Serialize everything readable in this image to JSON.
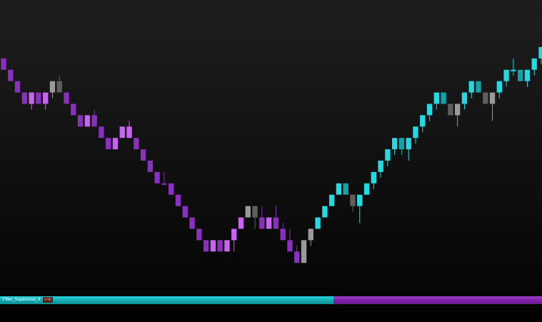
{
  "colors": {
    "bear_strong": "#8a2fc0",
    "bear_weak": "#c865f0",
    "neutral_light": "#9a9a9a",
    "neutral_dark": "#5e5e5e",
    "bull_strong": "#23d9e2",
    "bull_weak": "#11a3ab",
    "indicator_bull": "#15b3ba",
    "indicator_bear": "#8d2bbf"
  },
  "indicator": {
    "label": "Filter_Supernova_6",
    "value": "0.00",
    "bull_fraction": 0.615
  },
  "chart_data": {
    "type": "candlestick",
    "x": [
      1,
      2,
      3,
      4,
      5,
      6,
      7,
      8,
      9,
      10,
      11,
      12,
      13,
      14,
      15,
      16,
      17,
      18,
      19,
      20,
      21,
      22,
      23,
      24,
      25,
      26,
      27,
      28,
      29,
      30,
      31,
      32,
      33,
      34,
      35,
      36,
      37,
      38,
      39,
      40,
      41,
      42,
      43,
      44,
      45,
      46,
      47,
      48,
      49,
      50,
      51,
      52,
      53,
      54,
      55,
      56,
      57,
      58,
      59,
      60,
      61,
      62,
      63,
      64,
      65,
      66,
      67,
      68,
      69,
      70,
      71,
      72,
      73,
      74,
      75,
      76,
      77,
      78
    ],
    "ohlc": [
      [
        40,
        40,
        30,
        30
      ],
      [
        30,
        30,
        20,
        20
      ],
      [
        20,
        20,
        10,
        10
      ],
      [
        10,
        10,
        0,
        0
      ],
      [
        0,
        10,
        -5,
        10
      ],
      [
        10,
        10,
        0,
        0
      ],
      [
        0,
        10,
        -5,
        10
      ],
      [
        10,
        20,
        5,
        20
      ],
      [
        20,
        25,
        10,
        10
      ],
      [
        10,
        10,
        0,
        0
      ],
      [
        0,
        0,
        -10,
        -10
      ],
      [
        -10,
        -10,
        -20,
        -20
      ],
      [
        -20,
        -10,
        -20,
        -10
      ],
      [
        -10,
        -5,
        -20,
        -20
      ],
      [
        -20,
        -20,
        -30,
        -30
      ],
      [
        -30,
        -30,
        -40,
        -40
      ],
      [
        -40,
        -30,
        -40,
        -30
      ],
      [
        -30,
        -20,
        -30,
        -20
      ],
      [
        -20,
        -15,
        -30,
        -30
      ],
      [
        -30,
        -30,
        -40,
        -40
      ],
      [
        -40,
        -40,
        -50,
        -50
      ],
      [
        -50,
        -50,
        -60,
        -60
      ],
      [
        -60,
        -60,
        -70,
        -70
      ],
      [
        -70,
        -60,
        -70,
        -70
      ],
      [
        -70,
        -70,
        -80,
        -80
      ],
      [
        -80,
        -80,
        -90,
        -90
      ],
      [
        -90,
        -90,
        -100,
        -100
      ],
      [
        -100,
        -100,
        -110,
        -110
      ],
      [
        -110,
        -110,
        -120,
        -120
      ],
      [
        -120,
        -120,
        -130,
        -130
      ],
      [
        -130,
        -120,
        -130,
        -120
      ],
      [
        -120,
        -120,
        -130,
        -130
      ],
      [
        -130,
        -120,
        -130,
        -120
      ],
      [
        -120,
        -110,
        -130,
        -110
      ],
      [
        -110,
        -100,
        -110,
        -100
      ],
      [
        -100,
        -90,
        -100,
        -90
      ],
      [
        -90,
        -90,
        -110,
        -100
      ],
      [
        -100,
        -90,
        -110,
        -110
      ],
      [
        -110,
        -100,
        -110,
        -100
      ],
      [
        -100,
        -90,
        -110,
        -110
      ],
      [
        -110,
        -105,
        -120,
        -120
      ],
      [
        -120,
        -110,
        -130,
        -130
      ],
      [
        -130,
        -125,
        -140,
        -140
      ],
      [
        -140,
        -120,
        -140,
        -120
      ],
      [
        -120,
        -110,
        -125,
        -110
      ],
      [
        -110,
        -100,
        -110,
        -100
      ],
      [
        -100,
        -90,
        -100,
        -90
      ],
      [
        -90,
        -80,
        -90,
        -80
      ],
      [
        -80,
        -70,
        -80,
        -70
      ],
      [
        -70,
        -70,
        -80,
        -80
      ],
      [
        -80,
        -80,
        -95,
        -90
      ],
      [
        -90,
        -80,
        -105,
        -80
      ],
      [
        -80,
        -70,
        -80,
        -70
      ],
      [
        -70,
        -60,
        -75,
        -60
      ],
      [
        -60,
        -50,
        -65,
        -50
      ],
      [
        -50,
        -40,
        -55,
        -40
      ],
      [
        -40,
        -30,
        -45,
        -30
      ],
      [
        -30,
        -30,
        -45,
        -40
      ],
      [
        -40,
        -30,
        -50,
        -30
      ],
      [
        -30,
        -20,
        -35,
        -20
      ],
      [
        -20,
        -10,
        -25,
        -10
      ],
      [
        -10,
        0,
        -15,
        0
      ],
      [
        0,
        10,
        -5,
        10
      ],
      [
        10,
        10,
        0,
        0
      ],
      [
        0,
        0,
        -10,
        -10
      ],
      [
        -10,
        0,
        -20,
        0
      ],
      [
        0,
        10,
        -5,
        10
      ],
      [
        10,
        20,
        5,
        20
      ],
      [
        20,
        20,
        10,
        10
      ],
      [
        10,
        10,
        0,
        0
      ],
      [
        0,
        10,
        -15,
        10
      ],
      [
        10,
        20,
        5,
        20
      ],
      [
        20,
        30,
        15,
        30
      ],
      [
        30,
        40,
        25,
        30
      ],
      [
        30,
        30,
        20,
        20
      ],
      [
        20,
        30,
        15,
        30
      ],
      [
        30,
        40,
        25,
        40
      ],
      [
        40,
        50,
        35,
        50
      ]
    ],
    "colors": [
      "bear_strong",
      "bear_strong",
      "bear_strong",
      "bear_strong",
      "bear_weak",
      "bear_strong",
      "bear_weak",
      "neutral_light",
      "neutral_dark",
      "bear_strong",
      "bear_strong",
      "bear_strong",
      "bear_weak",
      "bear_strong",
      "bear_strong",
      "bear_strong",
      "bear_weak",
      "bear_weak",
      "bear_weak",
      "bear_strong",
      "bear_strong",
      "bear_strong",
      "bear_strong",
      "bear_strong",
      "bear_strong",
      "bear_strong",
      "bear_strong",
      "bear_strong",
      "bear_strong",
      "bear_strong",
      "bear_weak",
      "bear_strong",
      "bear_weak",
      "bear_weak",
      "bear_weak",
      "neutral_light",
      "neutral_dark",
      "bear_strong",
      "bear_weak",
      "bear_strong",
      "bear_strong",
      "bear_strong",
      "bear_strong",
      "neutral_light",
      "neutral_light",
      "bull_strong",
      "bull_strong",
      "bull_strong",
      "bull_strong",
      "bull_weak",
      "neutral_dark",
      "bull_strong",
      "bull_strong",
      "bull_strong",
      "bull_strong",
      "bull_strong",
      "bull_strong",
      "bull_weak",
      "bull_strong",
      "bull_strong",
      "bull_strong",
      "bull_strong",
      "bull_strong",
      "bull_weak",
      "neutral_dark",
      "neutral_light",
      "bull_strong",
      "bull_strong",
      "bull_weak",
      "neutral_dark",
      "neutral_light",
      "bull_strong",
      "bull_strong",
      "bull_strong",
      "bull_weak",
      "bull_strong",
      "bull_strong",
      "bull_strong"
    ],
    "ylim": [
      -160,
      60
    ],
    "grid": false
  }
}
